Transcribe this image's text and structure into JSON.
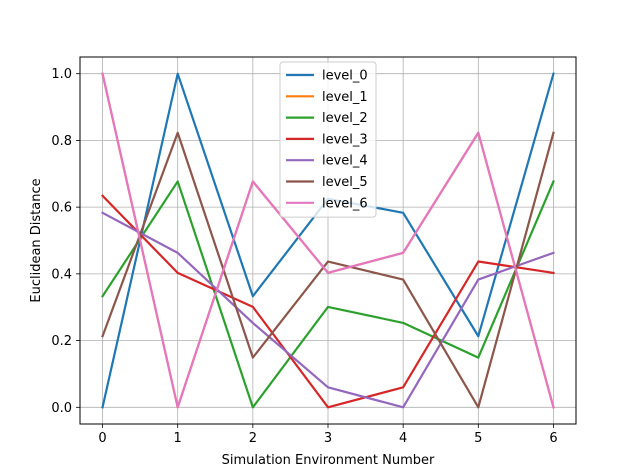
{
  "chart_data": {
    "type": "line",
    "title": "",
    "xlabel": "Simulation Environment Number",
    "ylabel": "Euclidean Distance",
    "x": [
      0,
      1,
      2,
      3,
      4,
      5,
      6
    ],
    "xlim": [
      -0.3,
      6.3
    ],
    "ylim": [
      -0.05,
      1.05
    ],
    "xticks": [
      "0",
      "1",
      "2",
      "3",
      "4",
      "5",
      "6"
    ],
    "yticks": [
      "0.0",
      "0.2",
      "0.4",
      "0.6",
      "0.8",
      "1.0"
    ],
    "grid": true,
    "legend_position": "upper-center",
    "series": [
      {
        "name": "level_0",
        "color": "#1f77b4",
        "values": [
          0.0,
          1.0,
          0.333,
          0.625,
          0.583,
          0.213,
          1.0
        ]
      },
      {
        "name": "level_1",
        "color": "#ff7f0e",
        "values": [
          1.0,
          0.0,
          0.677,
          0.403,
          0.463,
          0.823,
          0.0
        ]
      },
      {
        "name": "level_2",
        "color": "#2ca02c",
        "values": [
          0.333,
          0.677,
          0.0,
          0.301,
          0.253,
          0.149,
          0.677
        ]
      },
      {
        "name": "level_3",
        "color": "#d62728",
        "values": [
          0.634,
          0.403,
          0.301,
          0.0,
          0.06,
          0.437,
          0.403
        ]
      },
      {
        "name": "level_4",
        "color": "#9467bd",
        "values": [
          0.583,
          0.463,
          0.253,
          0.06,
          0.0,
          0.383,
          0.463
        ]
      },
      {
        "name": "level_5",
        "color": "#8c564b",
        "values": [
          0.213,
          0.823,
          0.149,
          0.437,
          0.383,
          0.0,
          0.823
        ]
      },
      {
        "name": "level_6",
        "color": "#e377c2",
        "values": [
          1.0,
          0.0,
          0.677,
          0.403,
          0.463,
          0.823,
          0.0
        ]
      }
    ]
  }
}
